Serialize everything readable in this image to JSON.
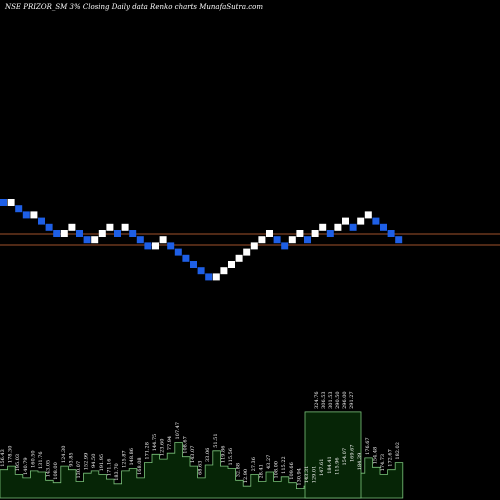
{
  "chart_data": {
    "type": "renko",
    "title": "NSE PRIZOR_SM 3% Closing Daily data Renko charts MunafaSutra.com",
    "colors": {
      "background": "#000000",
      "up_brick": "#ffffff",
      "down_brick": "#1e5fe6",
      "reference_line": "#a0522d",
      "volume_fill": "#062506",
      "volume_stroke": "#7bc47b"
    },
    "bricks": [
      {
        "dir": "down",
        "level": 0
      },
      {
        "dir": "up",
        "level": 0
      },
      {
        "dir": "down",
        "level": 1
      },
      {
        "dir": "down",
        "level": 2
      },
      {
        "dir": "up",
        "level": 2
      },
      {
        "dir": "down",
        "level": 3
      },
      {
        "dir": "down",
        "level": 4
      },
      {
        "dir": "down",
        "level": 5
      },
      {
        "dir": "up",
        "level": 5
      },
      {
        "dir": "up",
        "level": 4
      },
      {
        "dir": "down",
        "level": 5
      },
      {
        "dir": "down",
        "level": 6
      },
      {
        "dir": "up",
        "level": 6
      },
      {
        "dir": "up",
        "level": 5
      },
      {
        "dir": "up",
        "level": 4
      },
      {
        "dir": "down",
        "level": 5
      },
      {
        "dir": "up",
        "level": 4
      },
      {
        "dir": "down",
        "level": 5
      },
      {
        "dir": "down",
        "level": 6
      },
      {
        "dir": "down",
        "level": 7
      },
      {
        "dir": "up",
        "level": 7
      },
      {
        "dir": "up",
        "level": 6
      },
      {
        "dir": "down",
        "level": 7
      },
      {
        "dir": "down",
        "level": 8
      },
      {
        "dir": "down",
        "level": 9
      },
      {
        "dir": "down",
        "level": 10
      },
      {
        "dir": "down",
        "level": 11
      },
      {
        "dir": "down",
        "level": 12
      },
      {
        "dir": "up",
        "level": 12
      },
      {
        "dir": "up",
        "level": 11
      },
      {
        "dir": "up",
        "level": 10
      },
      {
        "dir": "up",
        "level": 9
      },
      {
        "dir": "up",
        "level": 8
      },
      {
        "dir": "up",
        "level": 7
      },
      {
        "dir": "up",
        "level": 6
      },
      {
        "dir": "up",
        "level": 5
      },
      {
        "dir": "down",
        "level": 6
      },
      {
        "dir": "down",
        "level": 7
      },
      {
        "dir": "up",
        "level": 6
      },
      {
        "dir": "up",
        "level": 5
      },
      {
        "dir": "down",
        "level": 6
      },
      {
        "dir": "up",
        "level": 5
      },
      {
        "dir": "up",
        "level": 4
      },
      {
        "dir": "down",
        "level": 5
      },
      {
        "dir": "up",
        "level": 4
      },
      {
        "dir": "up",
        "level": 3
      },
      {
        "dir": "down",
        "level": 4
      },
      {
        "dir": "up",
        "level": 3
      },
      {
        "dir": "up",
        "level": 2
      },
      {
        "dir": "down",
        "level": 3
      },
      {
        "dir": "down",
        "level": 4
      },
      {
        "dir": "down",
        "level": 5
      },
      {
        "dir": "down",
        "level": 6
      }
    ],
    "volume_labels": [
      "156.43",
      "178.30",
      "195.03",
      "140.79",
      "160.50",
      "131.76",
      "143.05",
      "108.00",
      "124.30",
      "93.85",
      "130.07",
      "152.99",
      "94.50",
      "191.95",
      "171.16",
      "183.70",
      "125.87",
      "148.86",
      "168.08",
      "171.28",
      "144.75",
      "123.60",
      "77.94",
      "107.47",
      "108.67",
      "143.07",
      "68.63",
      "33.06",
      "51.51",
      "119.86",
      "115.56",
      "32.88",
      "12.90",
      "27.36",
      "28.41",
      "43.27",
      "108.00",
      "115.22",
      "109.66",
      "130.94",
      "143.31",
      "129.01",
      "147.61",
      "184.41",
      "115.96",
      "154.07",
      "169.67",
      "184.39",
      "176.67",
      "154.48",
      "174.73",
      "172.67",
      "182.02"
    ],
    "volume_heights": [
      0.24,
      0.27,
      0.2,
      0.17,
      0.23,
      0.22,
      0.15,
      0.13,
      0.27,
      0.24,
      0.14,
      0.21,
      0.23,
      0.2,
      0.16,
      0.12,
      0.23,
      0.25,
      0.17,
      0.3,
      0.37,
      0.33,
      0.38,
      0.47,
      0.35,
      0.27,
      0.17,
      0.28,
      0.4,
      0.27,
      0.25,
      0.15,
      0.1,
      0.2,
      0.14,
      0.22,
      0.14,
      0.18,
      0.13,
      0.08,
      0.1,
      0.1,
      0.16,
      0.18,
      0.17,
      0.25,
      0.28,
      0.21,
      0.34,
      0.26,
      0.2,
      0.24,
      0.3
    ],
    "last_block_labels": [
      "324.76",
      "306.53",
      "301.53",
      "290.50",
      "296.00",
      "291.27"
    ],
    "last_block_height": 0.73
  }
}
